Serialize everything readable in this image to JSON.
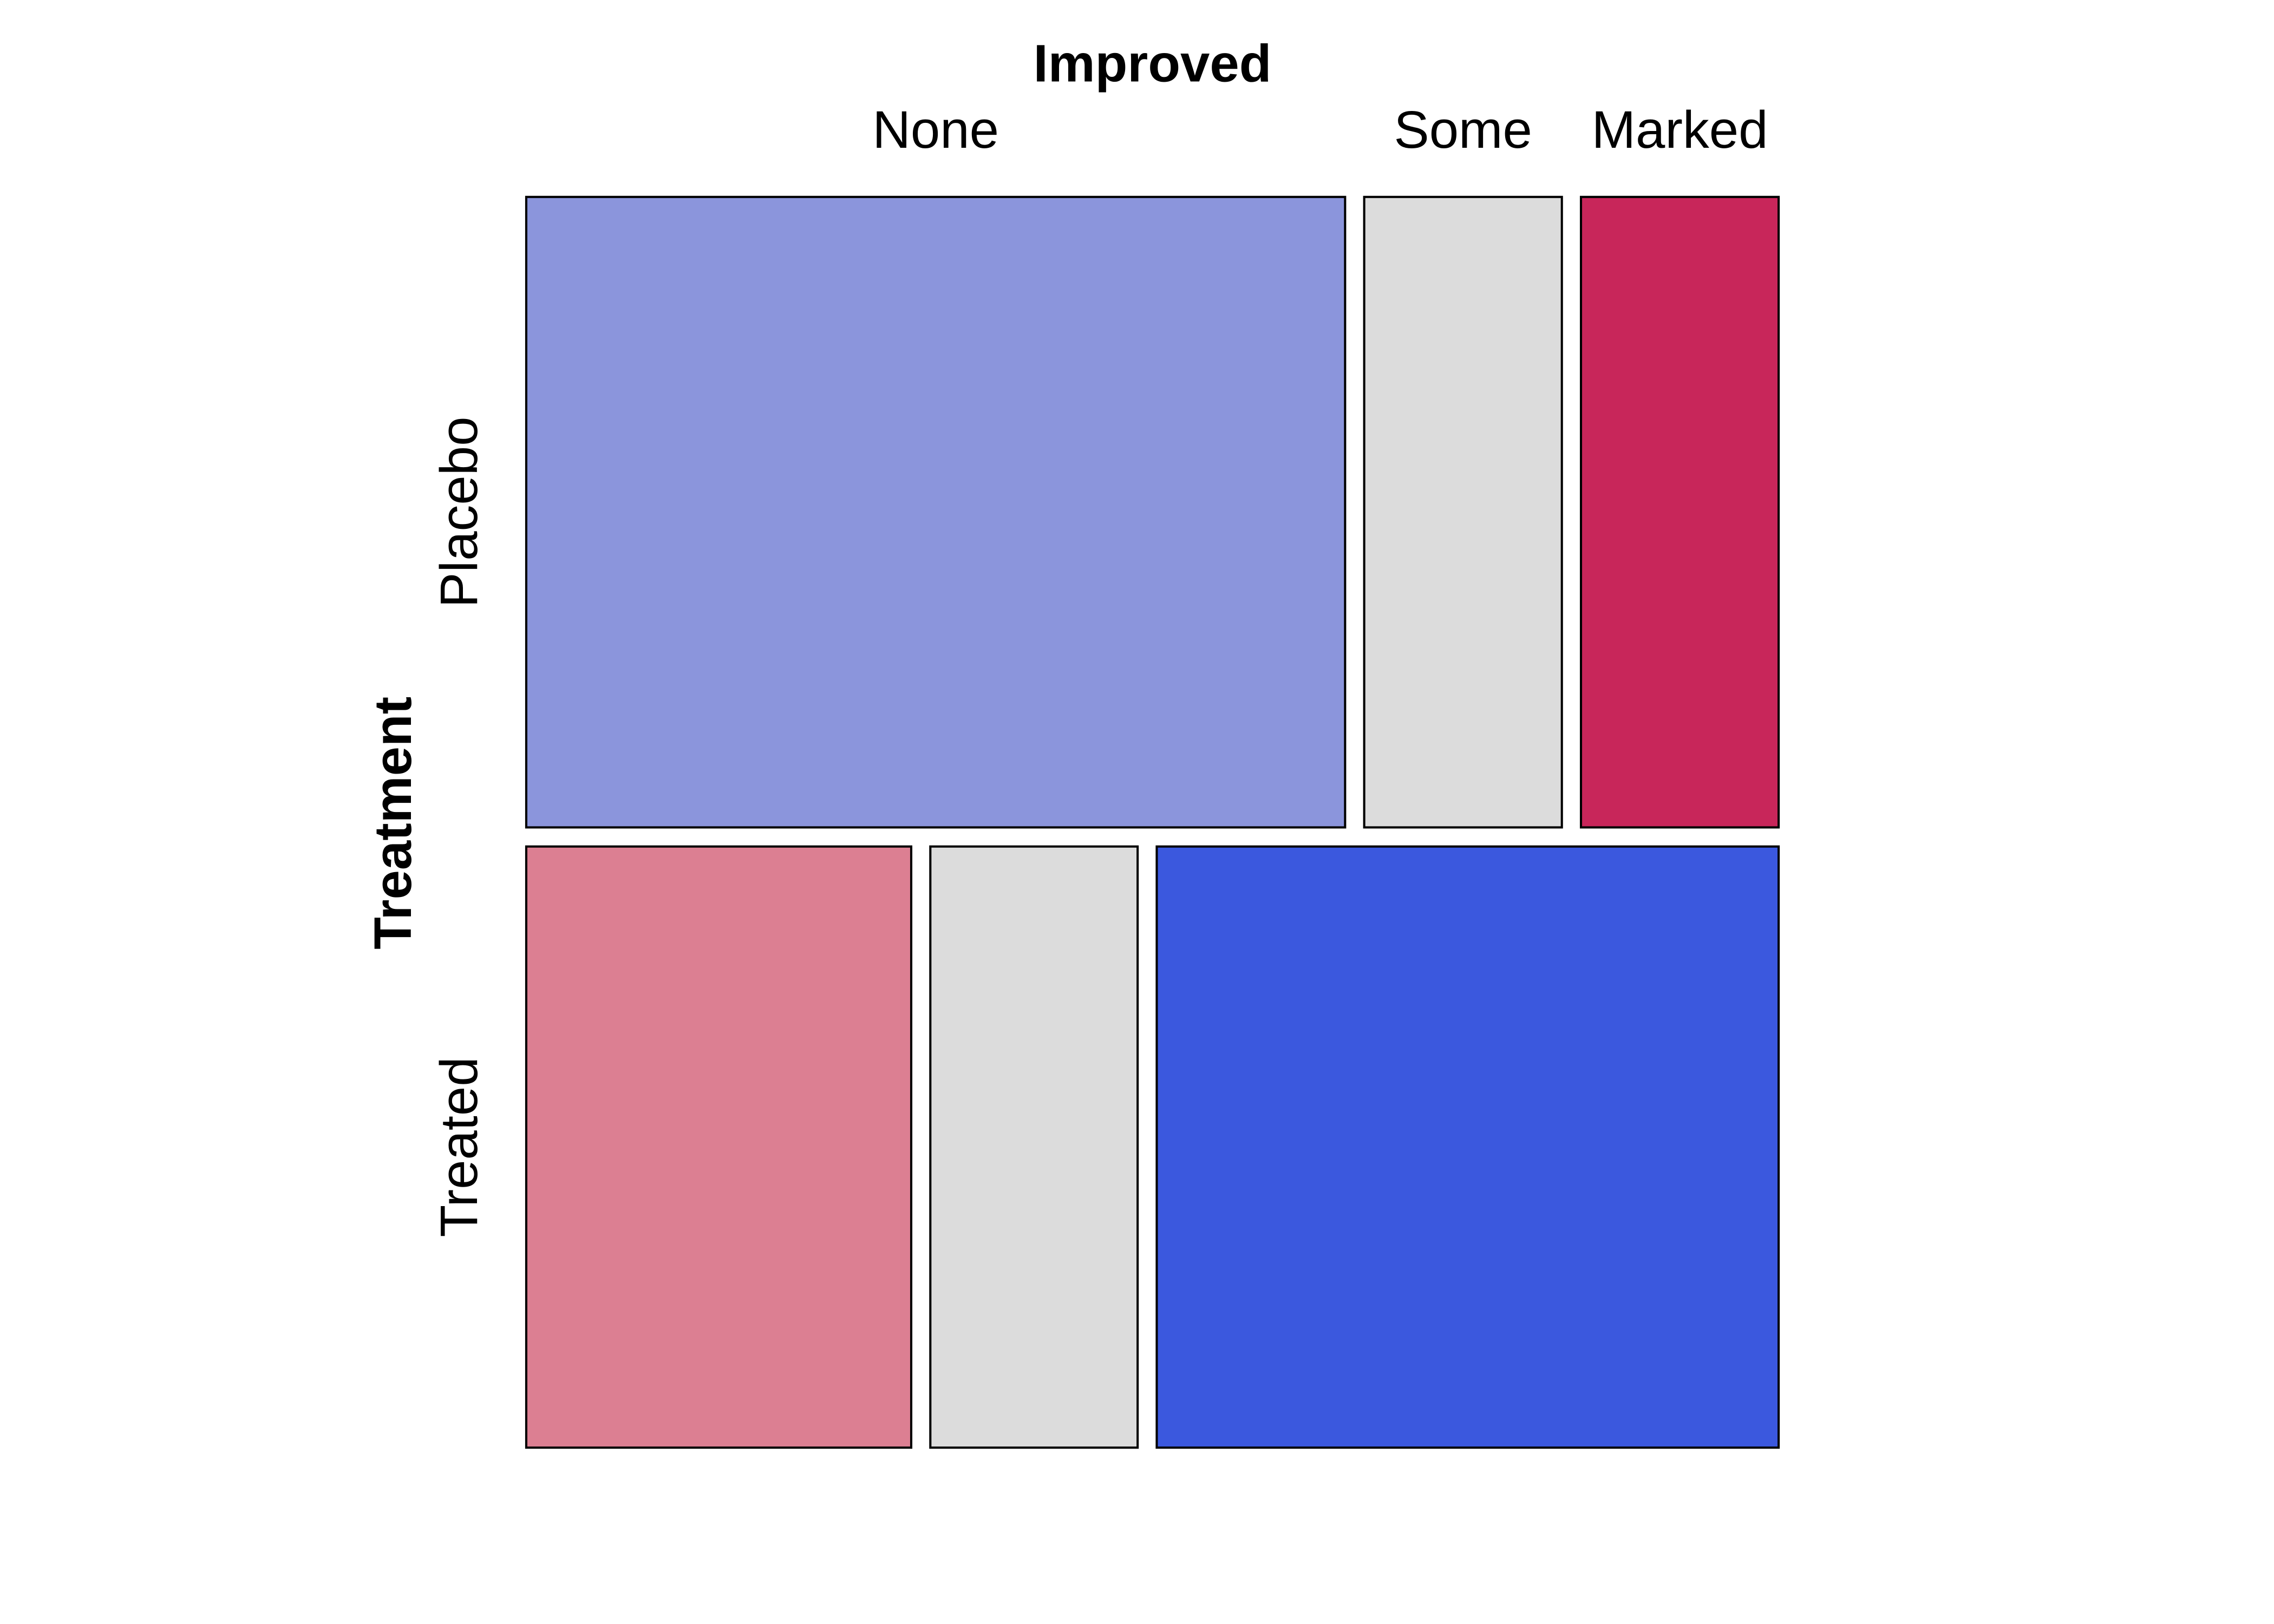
{
  "chart_data": {
    "type": "mosaic",
    "row_variable": "Treatment",
    "column_variable": "Improved",
    "rows": [
      "Placebo",
      "Treated"
    ],
    "columns": [
      "None",
      "Some",
      "Marked"
    ],
    "counts": [
      [
        29,
        7,
        7
      ],
      [
        13,
        7,
        21
      ]
    ],
    "colors": [
      [
        "#8b95dc",
        "#dcdcdc",
        "#c8265a"
      ],
      [
        "#dc7f92",
        "#dcdcdc",
        "#3b58de"
      ]
    ]
  }
}
